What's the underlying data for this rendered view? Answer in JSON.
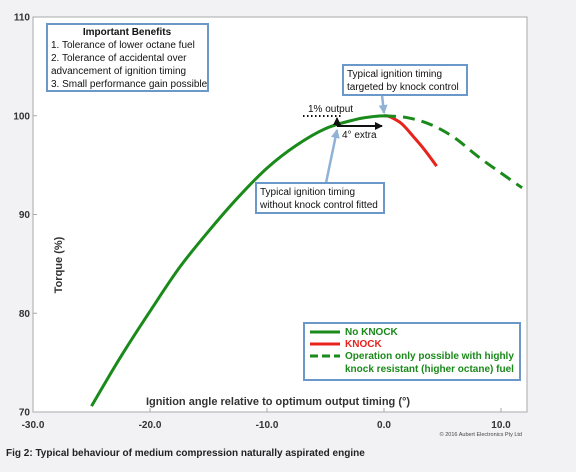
{
  "chart_data": {
    "type": "line",
    "xlabel": "Ignition angle relative to optimum output timing (°)",
    "ylabel": "Torque (%)",
    "xlim": [
      -30,
      12
    ],
    "ylim": [
      70,
      110
    ],
    "x_ticks": [
      -30,
      -20,
      -10,
      0,
      10
    ],
    "x_tick_labels": [
      "-30.0",
      "-20.0",
      "-10.0",
      "0.0",
      "10.0"
    ],
    "y_ticks": [
      70,
      80,
      90,
      100,
      110
    ],
    "y_tick_labels": [
      "70",
      "80",
      "90",
      "100",
      "110"
    ],
    "grid": false,
    "legend_position": "bottom-right",
    "series": [
      {
        "name": "No KNOCK",
        "color": "#1a8a1a",
        "style": "solid",
        "x": [
          -25,
          -22.5,
          -20,
          -17.5,
          -15,
          -12.5,
          -10,
          -7.5,
          -5,
          -2.5,
          -1,
          0
        ],
        "y": [
          70.6,
          75.6,
          80.2,
          84.6,
          88.3,
          91.7,
          94.7,
          97.0,
          98.7,
          99.6,
          99.9,
          100
        ]
      },
      {
        "name": "KNOCK",
        "color": "#e8231c",
        "style": "solid",
        "x": [
          0,
          0.5,
          1.5,
          2.5,
          3.5,
          4.5
        ],
        "y": [
          100,
          99.9,
          99.2,
          97.9,
          96.5,
          94.9
        ]
      },
      {
        "name": "Operation only possible with highly knock resistant (higher octane) fuel",
        "color": "#1a8a1a",
        "style": "dashed",
        "x": [
          0,
          2,
          4,
          6,
          8,
          10,
          11.8
        ],
        "y": [
          100,
          99.8,
          99.1,
          97.8,
          95.9,
          94.2,
          92.7
        ]
      }
    ],
    "annotations": {
      "benefits_title": "Important Benefits",
      "benefits": [
        "1. Tolerance of lower octane fuel",
        "2. Tolerance of accidental over",
        "advancement of ignition timing",
        "3. Small performance gain possible"
      ],
      "knock_control_lines": [
        "Typical ignition timing",
        "targeted by knock control"
      ],
      "no_knock_control_lines": [
        "Typical ignition timing",
        "without knock control fitted"
      ],
      "output_gain": "1% output",
      "timing_gain": "4° extra"
    },
    "copyright": "© 2016 Aubert Electronics Pty Ltd"
  },
  "caption": "Fig 2: Typical behaviour of medium compression naturally aspirated engine"
}
